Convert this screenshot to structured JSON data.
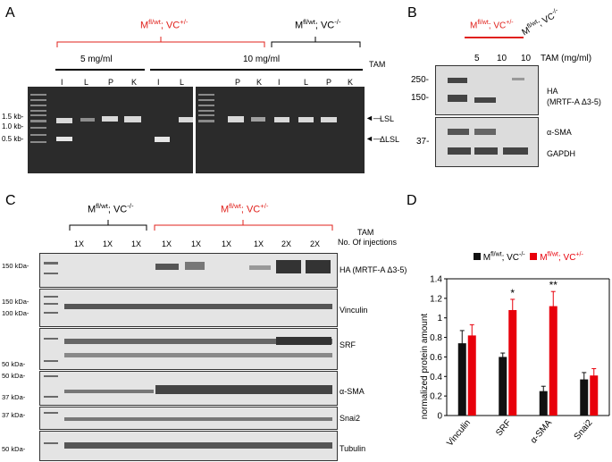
{
  "panelA": {
    "letter": "A",
    "group_red": "Mfl/wt; VC+/-",
    "group_red_sup1": "fl/wt",
    "group_red_sup2": "+/-",
    "group_black_sup1": "fl/wt",
    "group_black_sup2": "-/-",
    "dose1": "5 mg/ml",
    "dose2": "10 mg/ml",
    "tam": "TAM",
    "lanes": [
      "I",
      "L",
      "P",
      "K",
      "I",
      "L",
      "P",
      "K",
      "I",
      "L",
      "P",
      "K"
    ],
    "markers": [
      "1.5 kb-",
      "1.0 kb-",
      "0.5 kb-"
    ],
    "bands": [
      "LSL",
      "ΔLSL"
    ]
  },
  "panelB": {
    "letter": "B",
    "red_label": "Mfl/wt; VC+/-",
    "black_label": "Mfl/wt; VC-/-",
    "doses": [
      "5",
      "10",
      "10"
    ],
    "tam": "TAM (mg/ml)",
    "markers": [
      "250-",
      "150-",
      "37-"
    ],
    "labels": [
      "HA",
      "(MRTF-A Δ3-5)",
      "α-SMA",
      "GAPDH"
    ]
  },
  "panelC": {
    "letter": "C",
    "group_black": "Mfl/wt; VC-/-",
    "group_red": "Mfl/wt; VC+/-",
    "tam": "TAM",
    "injections_label": "No. Of injections",
    "injections": [
      "1X",
      "1X",
      "1X",
      "1X",
      "1X",
      "1X",
      "1X",
      "2X",
      "2X"
    ],
    "blots": [
      {
        "marker": "150 kDa-",
        "label": "HA (MRTF-A Δ3-5)"
      },
      {
        "marker": "150 kDa-",
        "marker2": "100 kDa-",
        "label": "Vinculin"
      },
      {
        "marker": "50 kDa-",
        "label": "SRF"
      },
      {
        "marker": "50 kDa-",
        "marker2": "37 kDa-",
        "label": "α-SMA"
      },
      {
        "marker": "37 kDa-",
        "label": "Snai2"
      },
      {
        "marker": "50 kDa-",
        "label": "Tubulin"
      }
    ]
  },
  "panelD": {
    "letter": "D",
    "legend_black": "Mfl/wt; VC-/-",
    "legend_red": "Mfl/wt; VC+/-",
    "colors": {
      "control": "#111111",
      "treated": "#e8000b"
    }
  },
  "chart_data": {
    "type": "bar",
    "categories": [
      "Vinculin",
      "SRF",
      "α-SMA",
      "Snai2"
    ],
    "ylabel": "normalized protein amount",
    "ylim": [
      0,
      1.4
    ],
    "yticks": [
      "0",
      "0.2",
      "0.4",
      "0.6",
      "0.8",
      "1",
      "1.2",
      "1.4"
    ],
    "series": [
      {
        "name": "Mfl/wt; VC-/-",
        "values": [
          0.74,
          0.6,
          0.25,
          0.37
        ],
        "errors": [
          0.13,
          0.04,
          0.05,
          0.07
        ]
      },
      {
        "name": "Mfl/wt; VC+/-",
        "values": [
          0.82,
          1.08,
          1.12,
          0.41
        ],
        "errors": [
          0.11,
          0.11,
          0.15,
          0.07
        ]
      }
    ],
    "annotations": [
      "",
      "*",
      "**",
      ""
    ]
  }
}
